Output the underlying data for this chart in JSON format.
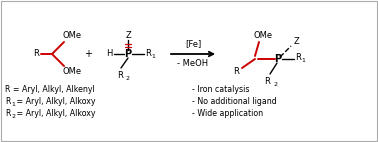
{
  "bg_color": "#ffffff",
  "black": "#000000",
  "red": "#cc0000",
  "fig_width": 3.78,
  "fig_height": 1.42,
  "dpi": 100,
  "text_R_eq": "R = Aryl, Alkyl, Alkenyl",
  "text_R1_eq_rest": " = Aryl, Alkyl, Alkoxy",
  "text_R2_eq_rest": " = Aryl, Alkyl, Alkoxy",
  "text_iron": "- Iron catalysis",
  "text_ligand": "- No additional ligand",
  "text_app": "- Wide application",
  "label_Fe": "[Fe]",
  "label_MeOH": "- MeOH"
}
